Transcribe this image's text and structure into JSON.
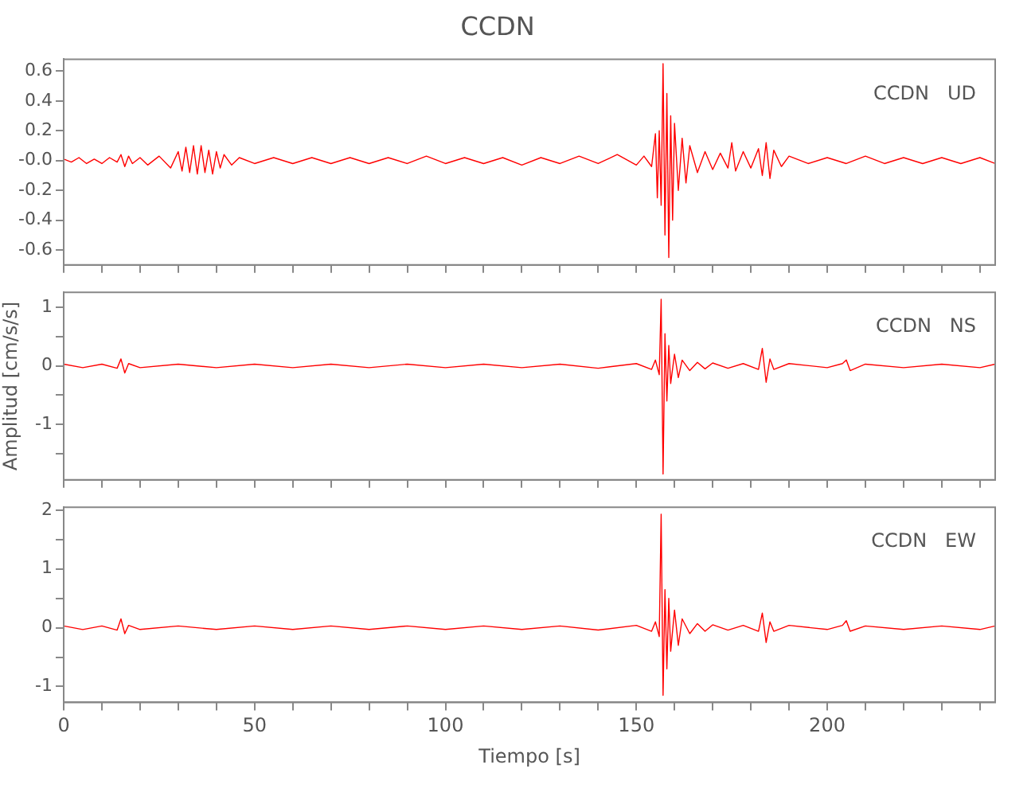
{
  "chart_data": [
    {
      "type": "line",
      "title": "CCDN",
      "annotations": [
        "CCDN   UD"
      ],
      "tick_labels": "y",
      "grid": false,
      "legend": false,
      "xlim": [
        0,
        244
      ],
      "ylim": [
        -0.7,
        0.68
      ],
      "xticks": [
        0,
        {
          "value": 10,
          "label": null
        },
        {
          "value": 20,
          "label": null
        },
        {
          "value": 30,
          "label": null
        },
        {
          "value": 40,
          "label": null
        },
        50,
        {
          "value": 60,
          "label": null
        },
        {
          "value": 70,
          "label": null
        },
        {
          "value": 80,
          "label": null
        },
        {
          "value": 90,
          "label": null
        },
        100,
        {
          "value": 110,
          "label": null
        },
        {
          "value": 120,
          "label": null
        },
        {
          "value": 130,
          "label": null
        },
        {
          "value": 140,
          "label": null
        },
        150,
        {
          "value": 160,
          "label": null
        },
        {
          "value": 170,
          "label": null
        },
        {
          "value": 180,
          "label": null
        },
        {
          "value": 190,
          "label": null
        },
        200,
        {
          "value": 210,
          "label": null
        },
        {
          "value": 220,
          "label": null
        },
        {
          "value": 230,
          "label": null
        },
        {
          "value": 240,
          "label": null
        }
      ],
      "yticks": [
        -0.6,
        -0.4,
        -0.2,
        {
          "value": 0,
          "label": "-0.0"
        },
        0.2,
        0.4,
        0.6
      ],
      "series": [
        {
          "color": "#ff0000",
          "x": [
            0,
            2,
            4,
            6,
            8,
            10,
            12,
            14,
            15,
            16,
            17,
            18,
            20,
            22,
            25,
            28,
            30,
            31,
            32,
            33,
            34,
            35,
            36,
            37,
            38,
            39,
            40,
            41,
            42,
            44,
            46,
            50,
            55,
            60,
            65,
            70,
            75,
            80,
            85,
            90,
            95,
            100,
            105,
            110,
            115,
            120,
            125,
            130,
            135,
            140,
            145,
            150,
            152,
            154,
            155,
            155.5,
            156,
            156.5,
            157,
            157.5,
            158,
            158.5,
            159,
            159.5,
            160,
            161,
            162,
            163,
            164,
            166,
            168,
            170,
            172,
            174,
            175,
            176,
            178,
            180,
            182,
            183,
            184,
            185,
            186,
            188,
            190,
            195,
            200,
            205,
            210,
            215,
            220,
            225,
            230,
            235,
            240,
            244
          ],
          "values": [
            0.01,
            -0.01,
            0.02,
            -0.02,
            0.01,
            -0.02,
            0.02,
            -0.01,
            0.04,
            -0.04,
            0.03,
            -0.02,
            0.02,
            -0.03,
            0.03,
            -0.05,
            0.06,
            -0.07,
            0.09,
            -0.08,
            0.1,
            -0.09,
            0.1,
            -0.08,
            0.07,
            -0.09,
            0.06,
            -0.05,
            0.04,
            -0.03,
            0.02,
            -0.02,
            0.02,
            -0.02,
            0.02,
            -0.02,
            0.02,
            -0.02,
            0.02,
            -0.02,
            0.03,
            -0.02,
            0.02,
            -0.02,
            0.02,
            -0.03,
            0.02,
            -0.02,
            0.03,
            -0.02,
            0.04,
            -0.03,
            0.03,
            -0.04,
            0.18,
            -0.25,
            0.2,
            -0.3,
            0.65,
            -0.5,
            0.45,
            -0.65,
            0.3,
            -0.4,
            0.25,
            -0.2,
            0.15,
            -0.15,
            0.1,
            -0.08,
            0.06,
            -0.06,
            0.05,
            -0.05,
            0.12,
            -0.07,
            0.06,
            -0.05,
            0.08,
            -0.1,
            0.12,
            -0.12,
            0.07,
            -0.04,
            0.03,
            -0.02,
            0.02,
            -0.02,
            0.03,
            -0.02,
            0.02,
            -0.02,
            0.02,
            -0.02,
            0.02,
            -0.02
          ]
        }
      ]
    },
    {
      "type": "line",
      "ylabel": "Amplitud [cm/s/s]",
      "annotations": [
        "CCDN   NS"
      ],
      "tick_labels": "y",
      "grid": false,
      "legend": false,
      "xlim": [
        0,
        244
      ],
      "ylim": [
        -1.95,
        1.26
      ],
      "xticks": [
        0,
        {
          "value": 10,
          "label": null
        },
        {
          "value": 20,
          "label": null
        },
        {
          "value": 30,
          "label": null
        },
        {
          "value": 40,
          "label": null
        },
        50,
        {
          "value": 60,
          "label": null
        },
        {
          "value": 70,
          "label": null
        },
        {
          "value": 80,
          "label": null
        },
        {
          "value": 90,
          "label": null
        },
        100,
        {
          "value": 110,
          "label": null
        },
        {
          "value": 120,
          "label": null
        },
        {
          "value": 130,
          "label": null
        },
        {
          "value": 140,
          "label": null
        },
        150,
        {
          "value": 160,
          "label": null
        },
        {
          "value": 170,
          "label": null
        },
        {
          "value": 180,
          "label": null
        },
        {
          "value": 190,
          "label": null
        },
        200,
        {
          "value": 210,
          "label": null
        },
        {
          "value": 220,
          "label": null
        },
        {
          "value": 230,
          "label": null
        },
        {
          "value": 240,
          "label": null
        }
      ],
      "yticks": [
        {
          "value": -1.5,
          "label": null
        },
        -1,
        {
          "value": -0.5,
          "label": null
        },
        0,
        {
          "value": 0.5,
          "label": null
        },
        1
      ],
      "series": [
        {
          "color": "#ff0000",
          "x": [
            0,
            5,
            10,
            14,
            15,
            16,
            17,
            20,
            30,
            40,
            50,
            60,
            70,
            80,
            90,
            100,
            110,
            120,
            130,
            140,
            150,
            154,
            155,
            156,
            156.5,
            157,
            157.5,
            158,
            158.5,
            159,
            160,
            161,
            162,
            164,
            166,
            168,
            170,
            174,
            178,
            182,
            183,
            184,
            185,
            186,
            190,
            200,
            204,
            205,
            206,
            210,
            220,
            230,
            240,
            244
          ],
          "values": [
            0.03,
            -0.03,
            0.03,
            -0.04,
            0.12,
            -0.12,
            0.04,
            -0.03,
            0.03,
            -0.03,
            0.03,
            -0.03,
            0.03,
            -0.03,
            0.03,
            -0.03,
            0.03,
            -0.03,
            0.03,
            -0.04,
            0.04,
            -0.06,
            0.1,
            -0.15,
            1.14,
            -1.85,
            0.55,
            -0.6,
            0.35,
            -0.3,
            0.2,
            -0.2,
            0.1,
            -0.08,
            0.06,
            -0.05,
            0.05,
            -0.04,
            0.04,
            -0.06,
            0.3,
            -0.28,
            0.12,
            -0.06,
            0.04,
            -0.03,
            0.04,
            0.1,
            -0.08,
            0.03,
            -0.03,
            0.03,
            -0.03,
            0.03
          ]
        }
      ]
    },
    {
      "type": "line",
      "xlabel": "Tiempo [s]",
      "annotations": [
        "CCDN   EW"
      ],
      "grid": false,
      "legend": false,
      "xlim": [
        0,
        244
      ],
      "ylim": [
        -1.27,
        2.05
      ],
      "xticks": [
        0,
        {
          "value": 10,
          "label": null
        },
        {
          "value": 20,
          "label": null
        },
        {
          "value": 30,
          "label": null
        },
        {
          "value": 40,
          "label": null
        },
        50,
        {
          "value": 60,
          "label": null
        },
        {
          "value": 70,
          "label": null
        },
        {
          "value": 80,
          "label": null
        },
        {
          "value": 90,
          "label": null
        },
        100,
        {
          "value": 110,
          "label": null
        },
        {
          "value": 120,
          "label": null
        },
        {
          "value": 130,
          "label": null
        },
        {
          "value": 140,
          "label": null
        },
        150,
        {
          "value": 160,
          "label": null
        },
        {
          "value": 170,
          "label": null
        },
        {
          "value": 180,
          "label": null
        },
        {
          "value": 190,
          "label": null
        },
        200,
        {
          "value": 210,
          "label": null
        },
        {
          "value": 220,
          "label": null
        },
        {
          "value": 230,
          "label": null
        },
        {
          "value": 240,
          "label": null
        }
      ],
      "yticks": [
        -1,
        {
          "value": -0.5,
          "label": null
        },
        0,
        {
          "value": 0.5,
          "label": null
        },
        1,
        {
          "value": 1.5,
          "label": null
        },
        2
      ],
      "series": [
        {
          "color": "#ff0000",
          "x": [
            0,
            5,
            10,
            14,
            15,
            16,
            17,
            20,
            30,
            40,
            50,
            60,
            70,
            80,
            90,
            100,
            110,
            120,
            130,
            140,
            150,
            154,
            155,
            156,
            156.5,
            157,
            157.5,
            158,
            158.5,
            159,
            160,
            161,
            162,
            164,
            166,
            168,
            170,
            174,
            178,
            182,
            183,
            184,
            185,
            186,
            190,
            200,
            204,
            205,
            206,
            210,
            220,
            230,
            240,
            244
          ],
          "values": [
            0.03,
            -0.03,
            0.03,
            -0.04,
            0.15,
            -0.1,
            0.04,
            -0.03,
            0.03,
            -0.03,
            0.03,
            -0.03,
            0.03,
            -0.03,
            0.03,
            -0.03,
            0.03,
            -0.03,
            0.03,
            -0.04,
            0.04,
            -0.06,
            0.1,
            -0.15,
            1.93,
            -1.15,
            0.65,
            -0.7,
            0.5,
            -0.4,
            0.3,
            -0.3,
            0.15,
            -0.1,
            0.07,
            -0.06,
            0.05,
            -0.04,
            0.04,
            -0.06,
            0.25,
            -0.25,
            0.1,
            -0.06,
            0.04,
            -0.03,
            0.04,
            0.12,
            -0.06,
            0.03,
            -0.03,
            0.03,
            -0.03,
            0.03
          ]
        }
      ]
    }
  ]
}
